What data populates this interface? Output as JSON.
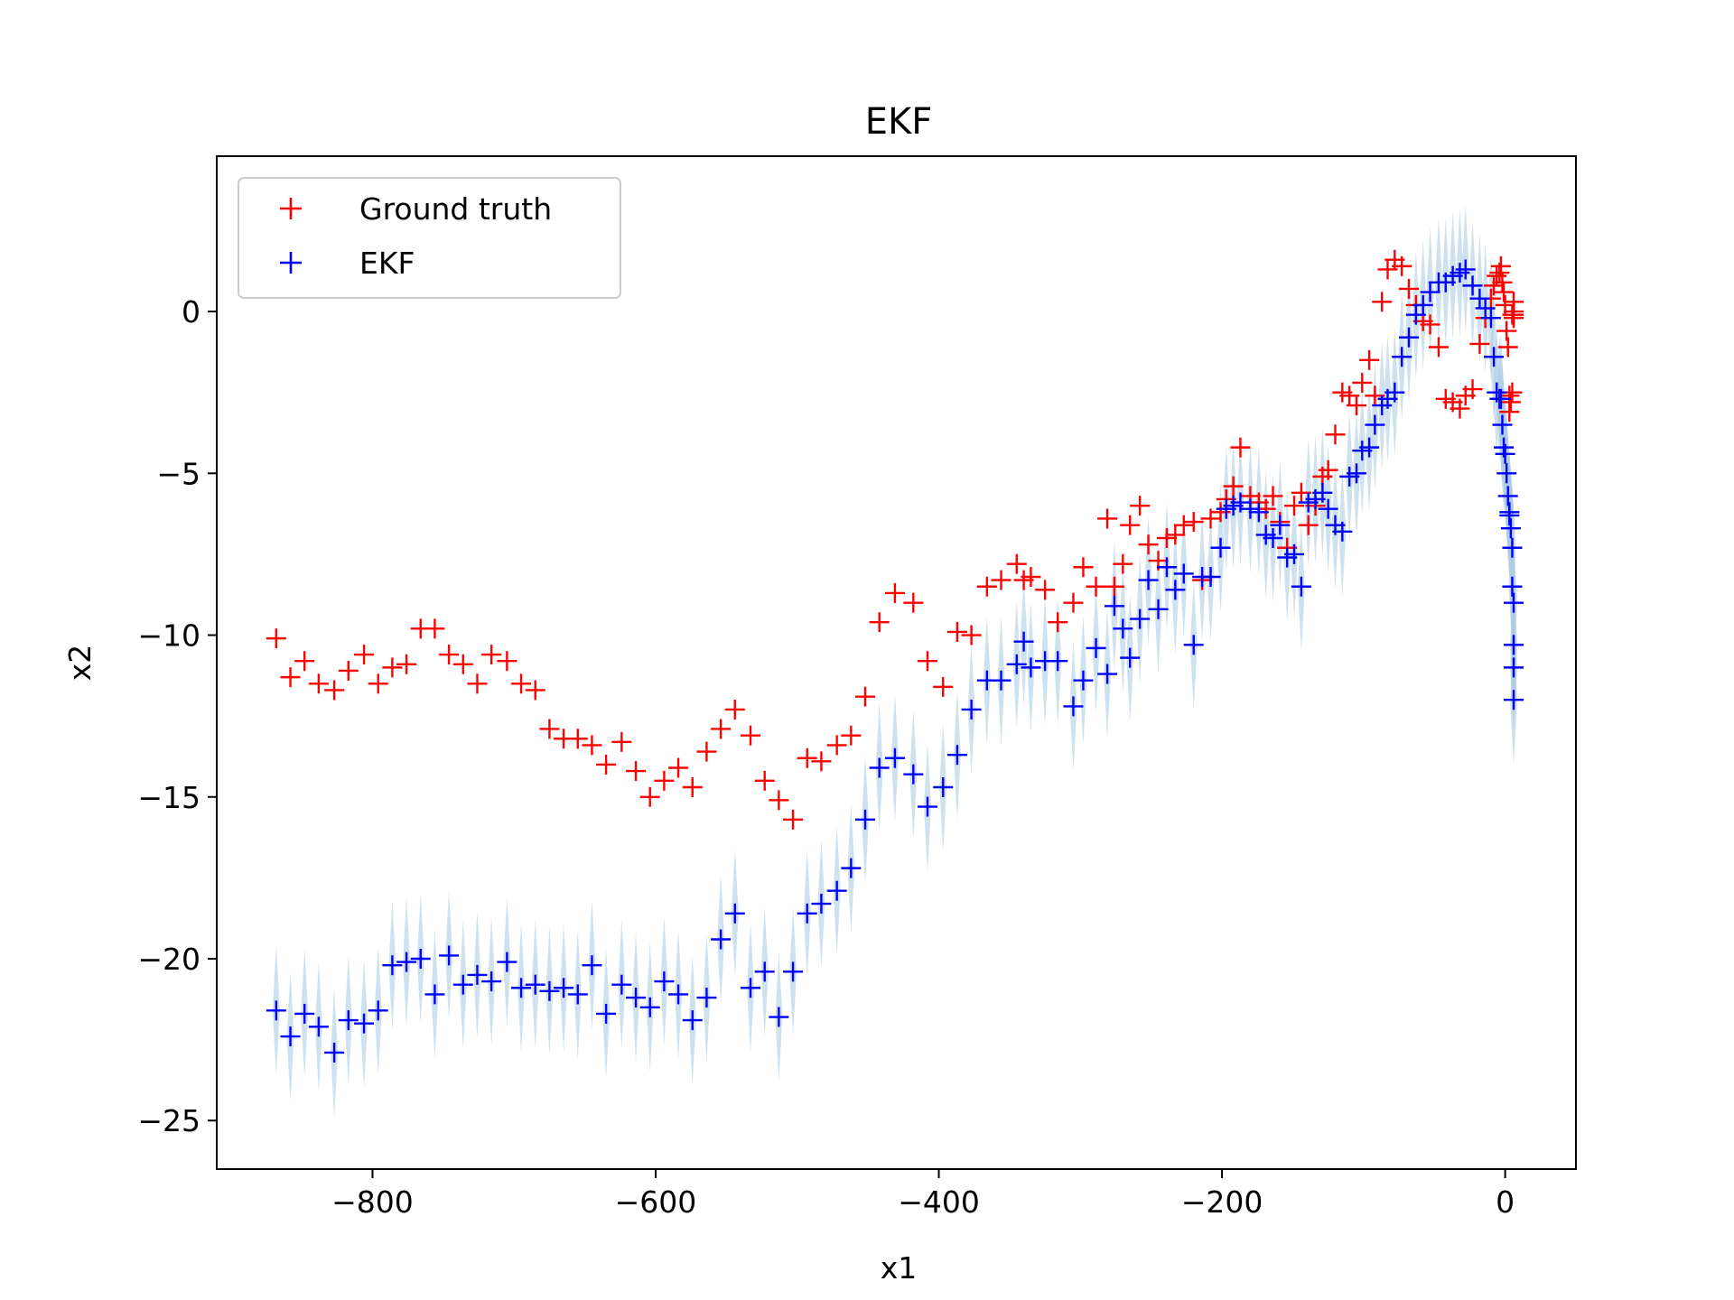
{
  "chart_data": {
    "type": "scatter",
    "title": "EKF",
    "xlabel": "x1",
    "ylabel": "x2",
    "xlim": [
      -910,
      50
    ],
    "ylim": [
      -26.5,
      4.8
    ],
    "xticks": [
      -800,
      -600,
      -400,
      -200,
      0
    ],
    "xtick_labels": [
      "−800",
      "−600",
      "−400",
      "−200",
      "0"
    ],
    "yticks": [
      0,
      -5,
      -10,
      -15,
      -20,
      -25
    ],
    "ytick_labels": [
      "0",
      "−5",
      "−10",
      "−15",
      "−20",
      "−25"
    ],
    "legend_placement": "upper left",
    "grid": false,
    "uncertainty_band_color": "#a6c8e0",
    "series": [
      {
        "name": "Ground truth",
        "marker": "+",
        "color": "#ff0000",
        "x": [
          -868,
          -858,
          -848,
          -838,
          -827,
          -817,
          -806,
          -796,
          -786,
          -776,
          -766,
          -756,
          -746,
          -736,
          -726,
          -716,
          -705,
          -695,
          -685,
          -675,
          -665,
          -655,
          -645,
          -635,
          -624,
          -614,
          -604,
          -594,
          -584,
          -574,
          -564,
          -554,
          -544,
          -533,
          -523,
          -513,
          -503,
          -493,
          -483,
          -472,
          -462,
          -452,
          -442,
          -431,
          -418,
          -408,
          -397,
          -387,
          -377,
          -366,
          -356,
          -345,
          -340,
          -335,
          -325,
          -316,
          -305,
          -298,
          -289,
          -281,
          -276,
          -270,
          -265,
          -258,
          -252,
          -245,
          -239,
          -233,
          -227,
          -220,
          -214,
          -208,
          -201,
          -197,
          -192,
          -187,
          -180,
          -174,
          -169,
          -164,
          -159,
          -154,
          -149,
          -144,
          -139,
          -134,
          -129,
          -125,
          -120,
          -115,
          -110,
          -105,
          -101,
          -96,
          -92,
          -87,
          -83,
          -78,
          -73,
          -68,
          -63,
          -58,
          -53,
          -47,
          -42,
          -37,
          -32,
          -28,
          -23,
          -18,
          -14,
          -10,
          -8,
          -6,
          -4,
          -3,
          -2,
          -1,
          0,
          1,
          2,
          3,
          3,
          4,
          5,
          5,
          6,
          6,
          6,
          6
        ],
        "y": [
          -10.1,
          -11.3,
          -10.8,
          -11.5,
          -11.7,
          -11.1,
          -10.6,
          -11.5,
          -11.0,
          -10.9,
          -9.8,
          -9.8,
          -10.6,
          -10.9,
          -11.5,
          -10.6,
          -10.8,
          -11.5,
          -11.7,
          -12.9,
          -13.2,
          -13.2,
          -13.4,
          -14.0,
          -13.3,
          -14.2,
          -15.0,
          -14.5,
          -14.1,
          -14.7,
          -13.6,
          -12.9,
          -12.3,
          -13.1,
          -14.5,
          -15.1,
          -15.7,
          -13.8,
          -13.9,
          -13.4,
          -13.1,
          -11.9,
          -9.6,
          -8.7,
          -9.0,
          -10.8,
          -11.6,
          -9.9,
          -10.0,
          -8.5,
          -8.3,
          -7.8,
          -8.3,
          -8.2,
          -8.6,
          -9.6,
          -9.0,
          -7.9,
          -8.5,
          -6.4,
          -8.5,
          -7.8,
          -6.6,
          -6.0,
          -7.2,
          -7.7,
          -7.0,
          -6.9,
          -6.6,
          -6.5,
          -8.3,
          -6.4,
          -6.2,
          -5.8,
          -5.4,
          -4.2,
          -5.7,
          -5.9,
          -6.1,
          -5.7,
          -6.5,
          -7.3,
          -6.0,
          -5.6,
          -6.6,
          -6.0,
          -5.1,
          -4.9,
          -3.8,
          -2.5,
          -2.6,
          -2.9,
          -2.2,
          -1.5,
          -2.6,
          0.3,
          1.3,
          1.6,
          1.4,
          0.7,
          0.2,
          -0.3,
          -0.4,
          -1.1,
          -2.7,
          -2.8,
          -3.0,
          -2.6,
          -2.4,
          -1.0,
          -0.2,
          0.4,
          0.8,
          1.1,
          1.2,
          1.4,
          0.9,
          0.6,
          0.2,
          -0.6,
          -1.1,
          -2.6,
          -3.1,
          -2.8,
          -2.5,
          -0.1,
          0.0,
          0.3,
          -0.1,
          -0.2
        ],
        "values_note": ""
      },
      {
        "name": "EKF",
        "marker": "+",
        "color": "#0000ff",
        "x": [
          -868,
          -858,
          -848,
          -838,
          -827,
          -817,
          -806,
          -796,
          -786,
          -776,
          -766,
          -756,
          -746,
          -736,
          -726,
          -716,
          -705,
          -695,
          -685,
          -675,
          -665,
          -655,
          -645,
          -635,
          -624,
          -614,
          -604,
          -594,
          -584,
          -574,
          -564,
          -554,
          -544,
          -533,
          -523,
          -513,
          -503,
          -493,
          -483,
          -472,
          -462,
          -452,
          -442,
          -431,
          -418,
          -408,
          -397,
          -387,
          -377,
          -366,
          -356,
          -345,
          -340,
          -335,
          -325,
          -316,
          -305,
          -298,
          -289,
          -281,
          -276,
          -270,
          -265,
          -258,
          -252,
          -245,
          -239,
          -233,
          -227,
          -220,
          -214,
          -208,
          -201,
          -197,
          -192,
          -187,
          -180,
          -174,
          -169,
          -164,
          -159,
          -154,
          -149,
          -144,
          -139,
          -134,
          -129,
          -125,
          -120,
          -115,
          -110,
          -105,
          -101,
          -96,
          -92,
          -87,
          -83,
          -78,
          -73,
          -68,
          -63,
          -58,
          -53,
          -47,
          -42,
          -37,
          -32,
          -28,
          -23,
          -18,
          -14,
          -10,
          -8,
          -6,
          -4,
          -3,
          -2,
          -1,
          0,
          1,
          2,
          3,
          3,
          4,
          5,
          5,
          6,
          6,
          6,
          6
        ],
        "y": [
          -21.6,
          -22.4,
          -21.7,
          -22.1,
          -22.9,
          -21.9,
          -22.0,
          -21.6,
          -20.2,
          -20.1,
          -20.0,
          -21.1,
          -19.9,
          -20.8,
          -20.5,
          -20.7,
          -20.1,
          -20.9,
          -20.8,
          -21.0,
          -20.9,
          -21.1,
          -20.2,
          -21.7,
          -20.8,
          -21.2,
          -21.5,
          -20.7,
          -21.1,
          -21.9,
          -21.2,
          -19.4,
          -18.6,
          -20.9,
          -20.4,
          -21.8,
          -20.4,
          -18.6,
          -18.3,
          -17.9,
          -17.2,
          -15.7,
          -14.1,
          -13.8,
          -14.3,
          -15.3,
          -14.7,
          -13.7,
          -12.3,
          -11.4,
          -11.4,
          -10.9,
          -10.2,
          -11.0,
          -10.8,
          -10.8,
          -12.2,
          -11.4,
          -10.4,
          -11.2,
          -9.1,
          -9.8,
          -10.7,
          -9.5,
          -8.3,
          -9.2,
          -7.9,
          -8.6,
          -8.1,
          -10.3,
          -8.2,
          -8.2,
          -7.3,
          -6.1,
          -6.0,
          -5.9,
          -6.1,
          -6.2,
          -6.9,
          -7.0,
          -6.6,
          -7.6,
          -7.5,
          -8.5,
          -5.9,
          -5.8,
          -5.6,
          -6.1,
          -6.6,
          -6.8,
          -5.1,
          -5.0,
          -4.3,
          -4.2,
          -3.5,
          -2.9,
          -2.7,
          -2.5,
          -1.4,
          -0.8,
          -0.1,
          0.2,
          0.6,
          0.9,
          0.9,
          1.1,
          1.2,
          1.3,
          0.8,
          0.4,
          0.1,
          -0.2,
          -1.4,
          -2.5,
          -2.7,
          -2.7,
          -3.5,
          -4.2,
          -4.4,
          -5.0,
          -5.7,
          -6.2,
          -6.3,
          -6.7,
          -7.3,
          -8.5,
          -9.0,
          -10.3,
          -11.0,
          -12.0
        ],
        "values_note": ""
      }
    ]
  }
}
